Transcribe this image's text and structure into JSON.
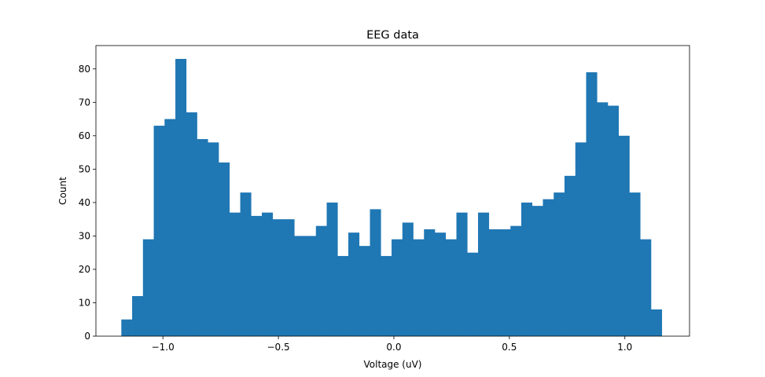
{
  "chart_data": {
    "type": "bar",
    "title": "EEG data",
    "xlabel": "Voltage (uV)",
    "ylabel": "Count",
    "xlim": [
      -1.29,
      1.28
    ],
    "ylim": [
      0,
      87
    ],
    "grid": false,
    "bar_color": "#1f77b4",
    "x_ticks": [
      {
        "value": -1.0,
        "label": "−1.0"
      },
      {
        "value": -0.5,
        "label": "−0.5"
      },
      {
        "value": 0.0,
        "label": "0.0"
      },
      {
        "value": 0.5,
        "label": "0.5"
      },
      {
        "value": 1.0,
        "label": "1.0"
      }
    ],
    "y_ticks": [
      {
        "value": 0,
        "label": "0"
      },
      {
        "value": 10,
        "label": "10"
      },
      {
        "value": 20,
        "label": "20"
      },
      {
        "value": 30,
        "label": "30"
      },
      {
        "value": 40,
        "label": "40"
      },
      {
        "value": 50,
        "label": "50"
      },
      {
        "value": 60,
        "label": "60"
      },
      {
        "value": 70,
        "label": "70"
      },
      {
        "value": 80,
        "label": "80"
      }
    ],
    "bin_start": -1.18,
    "bin_width": 0.0468,
    "counts": [
      5,
      12,
      29,
      63,
      65,
      83,
      67,
      59,
      58,
      52,
      37,
      43,
      36,
      37,
      35,
      35,
      30,
      30,
      33,
      40,
      24,
      31,
      27,
      38,
      24,
      29,
      34,
      29,
      32,
      31,
      29,
      37,
      25,
      37,
      32,
      32,
      33,
      40,
      39,
      41,
      43,
      48,
      58,
      79,
      70,
      69,
      60,
      43,
      29,
      8
    ]
  }
}
